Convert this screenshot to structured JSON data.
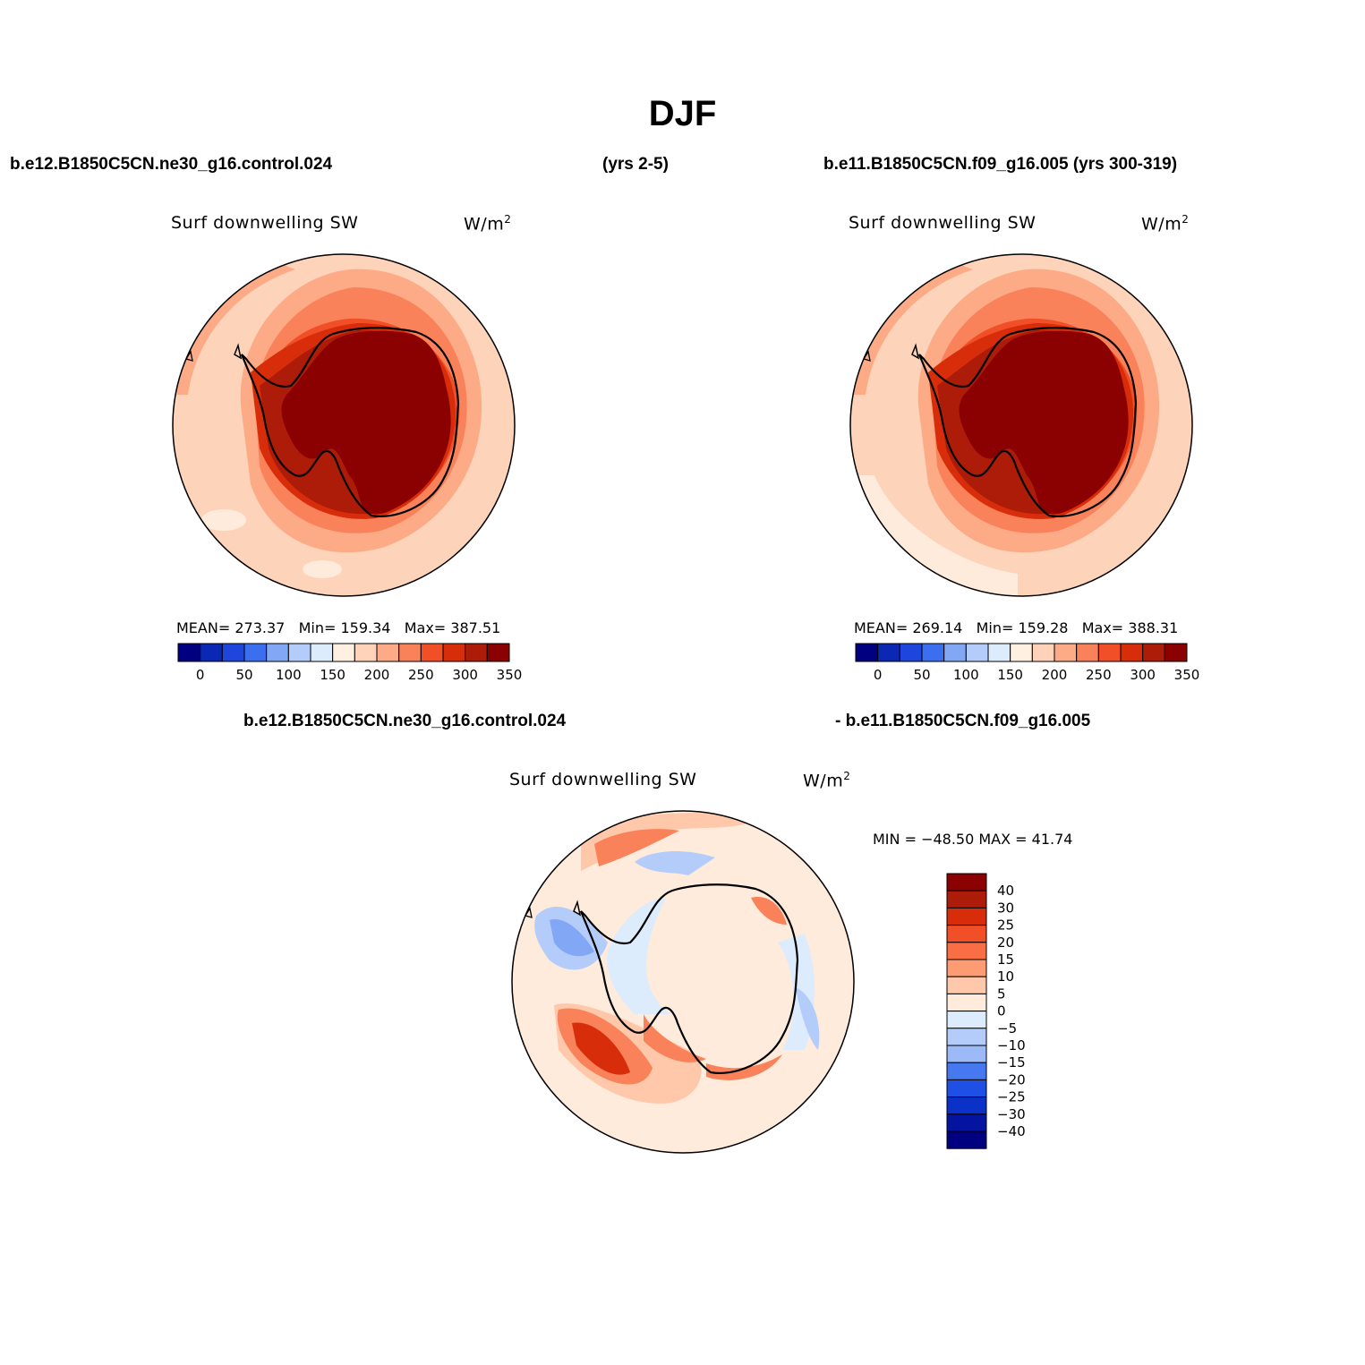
{
  "title": "DJF",
  "header": {
    "case1": "b.e12.B1850C5CN.ne30_g16.control.024",
    "years1": "(yrs 2-5)",
    "case2": "b.e11.B1850C5CN.f09_g16.005 (yrs 300-319)"
  },
  "diff_header": {
    "left": "b.e12.B1850C5CN.ne30_g16.control.024",
    "right": "- b.e11.B1850C5CN.f09_g16.005"
  },
  "panels": [
    {
      "variable": "Surf downwelling SW",
      "units": "W/m",
      "units_sup": "2",
      "mean_label": "MEAN=",
      "mean": "273.37",
      "min_label": "Min=",
      "min": "159.34",
      "max_label": "Max=",
      "max": "387.51"
    },
    {
      "variable": "Surf downwelling SW",
      "units": "W/m",
      "units_sup": "2",
      "mean_label": "MEAN=",
      "mean": "269.14",
      "min_label": "Min=",
      "min": "159.28",
      "max_label": "Max=",
      "max": "388.31"
    }
  ],
  "diff_panel": {
    "variable": "Surf downwelling SW",
    "units": "W/m",
    "units_sup": "2",
    "minmax": "MIN = −48.50 MAX =  41.74"
  },
  "colorbar_abs": {
    "tick_labels": [
      "0",
      "50",
      "100",
      "150",
      "200",
      "250",
      "300",
      "350"
    ],
    "colors": [
      "#000080",
      "#0a28b4",
      "#1e46dc",
      "#3c6ef0",
      "#82a8f5",
      "#b4ccfa",
      "#dcecfc",
      "#fff0e1",
      "#ffd2b9",
      "#fdaa87",
      "#fa825a",
      "#f04f28",
      "#d72d0a",
      "#ad1c08",
      "#8b0000"
    ]
  },
  "colorbar_diff": {
    "tick_labels": [
      "40",
      "30",
      "25",
      "20",
      "15",
      "10",
      "5",
      "0",
      "−5",
      "−10",
      "−15",
      "−20",
      "−25",
      "−30",
      "−40"
    ],
    "colors": [
      "#8b0000",
      "#ad1c08",
      "#d72d0a",
      "#f04f28",
      "#fa6e46",
      "#fd9b73",
      "#ffc8aa",
      "#ffebdc",
      "#dcecfc",
      "#b4ccfa",
      "#9bbaf7",
      "#4678f0",
      "#1e50e6",
      "#0a32c8",
      "#0514a0",
      "#000080"
    ]
  },
  "map_colors": {
    "ocean_light": "#fdd3b9",
    "ocean_lighter": "#ffebdc",
    "band_1": "#fdaa87",
    "band_2": "#fa825a",
    "band_3": "#f04f28",
    "band_4": "#d72d0a",
    "band_5": "#ad1c08",
    "continent": "#8b0000",
    "coastline": "#000000",
    "diff_base": "#ffebdc",
    "diff_cool_1": "#dcecfc",
    "diff_cool_2": "#b4ccfa",
    "diff_cool_3": "#82a8f5",
    "diff_warm_1": "#ffc8aa",
    "diff_warm_2": "#fa825a",
    "diff_warm_3": "#d72d0a"
  }
}
